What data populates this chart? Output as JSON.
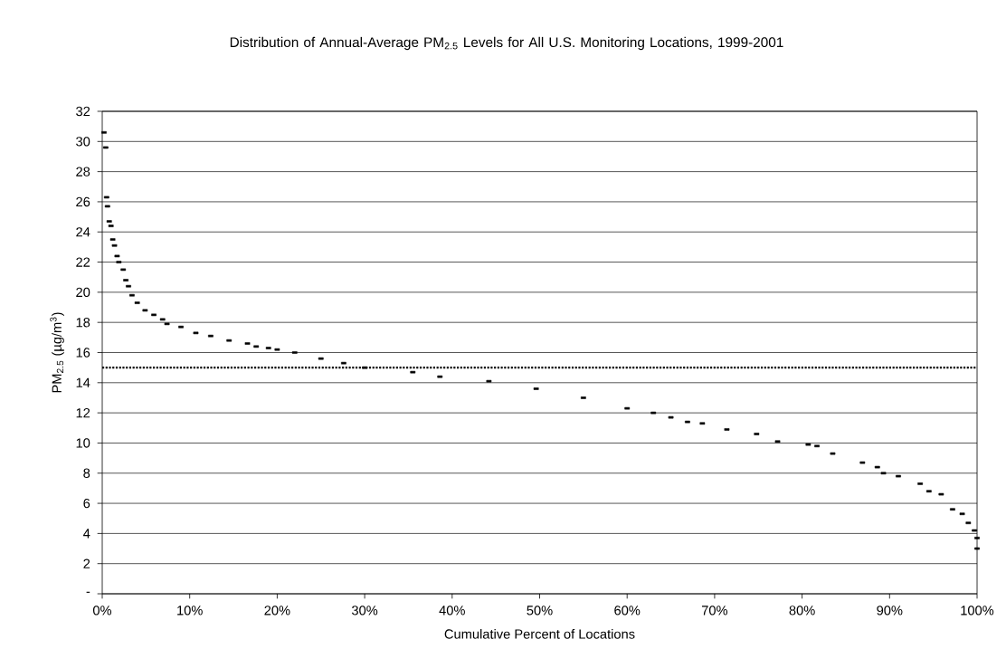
{
  "chart_data": {
    "type": "scatter",
    "title": "Distribution of Annual-Average PM$_{2.5}$ Levels for All U.S. Monitoring Locations, 1999-2001",
    "xlabel": "Cumulative Percent of Locations",
    "ylabel": "PM$_{2.5}$ (µg/m$^{3}$)",
    "x": [
      0.2,
      0.4,
      0.5,
      0.6,
      0.8,
      1.0,
      1.2,
      1.4,
      1.7,
      1.9,
      2.4,
      2.7,
      3.0,
      3.4,
      4.0,
      4.9,
      5.9,
      6.9,
      7.4,
      9.0,
      10.7,
      12.4,
      14.5,
      16.6,
      17.6,
      19.0,
      20,
      22,
      25,
      27.6,
      30,
      35.5,
      38.6,
      44.2,
      49.6,
      55,
      60,
      63,
      65,
      66.9,
      68.6,
      71.4,
      74.8,
      77.2,
      80.7,
      81.7,
      83.5,
      86.9,
      88.6,
      89.3,
      91.0,
      93.5,
      94.5,
      95.9,
      97.2,
      98.3,
      99.0,
      99.7,
      100,
      100
    ],
    "series": [
      {
        "color": "#000000",
        "values": [
          30.6,
          29.6,
          26.3,
          25.7,
          24.7,
          24.4,
          23.5,
          23.1,
          22.4,
          22.0,
          21.5,
          20.8,
          20.4,
          19.8,
          19.3,
          18.8,
          18.5,
          18.2,
          17.9,
          17.7,
          17.3,
          17.1,
          16.8,
          16.6,
          16.4,
          16.3,
          16.2,
          16.0,
          15.6,
          15.3,
          15.0,
          14.7,
          14.4,
          14.1,
          13.6,
          13.0,
          12.3,
          12.0,
          11.7,
          11.4,
          11.3,
          10.9,
          10.6,
          10.1,
          9.9,
          9.8,
          9.3,
          8.7,
          8.4,
          8.0,
          7.8,
          7.3,
          6.8,
          6.6,
          5.6,
          5.3,
          4.7,
          4.2,
          3.7,
          3.0
        ]
      }
    ],
    "marker": "square",
    "xlim": [
      0,
      100
    ],
    "xticks": [
      {
        "value": 0,
        "label": "0%"
      },
      {
        "value": 10,
        "label": "10%"
      },
      {
        "value": 20,
        "label": "20%"
      },
      {
        "value": 30,
        "label": "30%"
      },
      {
        "value": 40,
        "label": "40%"
      },
      {
        "value": 50,
        "label": "50%"
      },
      {
        "value": 60,
        "label": "60%"
      },
      {
        "value": 70,
        "label": "70%"
      },
      {
        "value": 80,
        "label": "80%"
      },
      {
        "value": 90,
        "label": "90%"
      },
      {
        "value": 100,
        "label": "100%"
      }
    ],
    "ylim": [
      0,
      32
    ],
    "yticks": [
      {
        "value": 0,
        "label": "-"
      },
      2,
      4,
      6,
      8,
      10,
      12,
      14,
      16,
      18,
      20,
      22,
      24,
      26,
      28,
      30,
      32
    ],
    "grid": "y",
    "ref_lines": [
      {
        "axis": "y",
        "value": 15,
        "color": "#000000",
        "line_style": "dotted"
      }
    ]
  }
}
